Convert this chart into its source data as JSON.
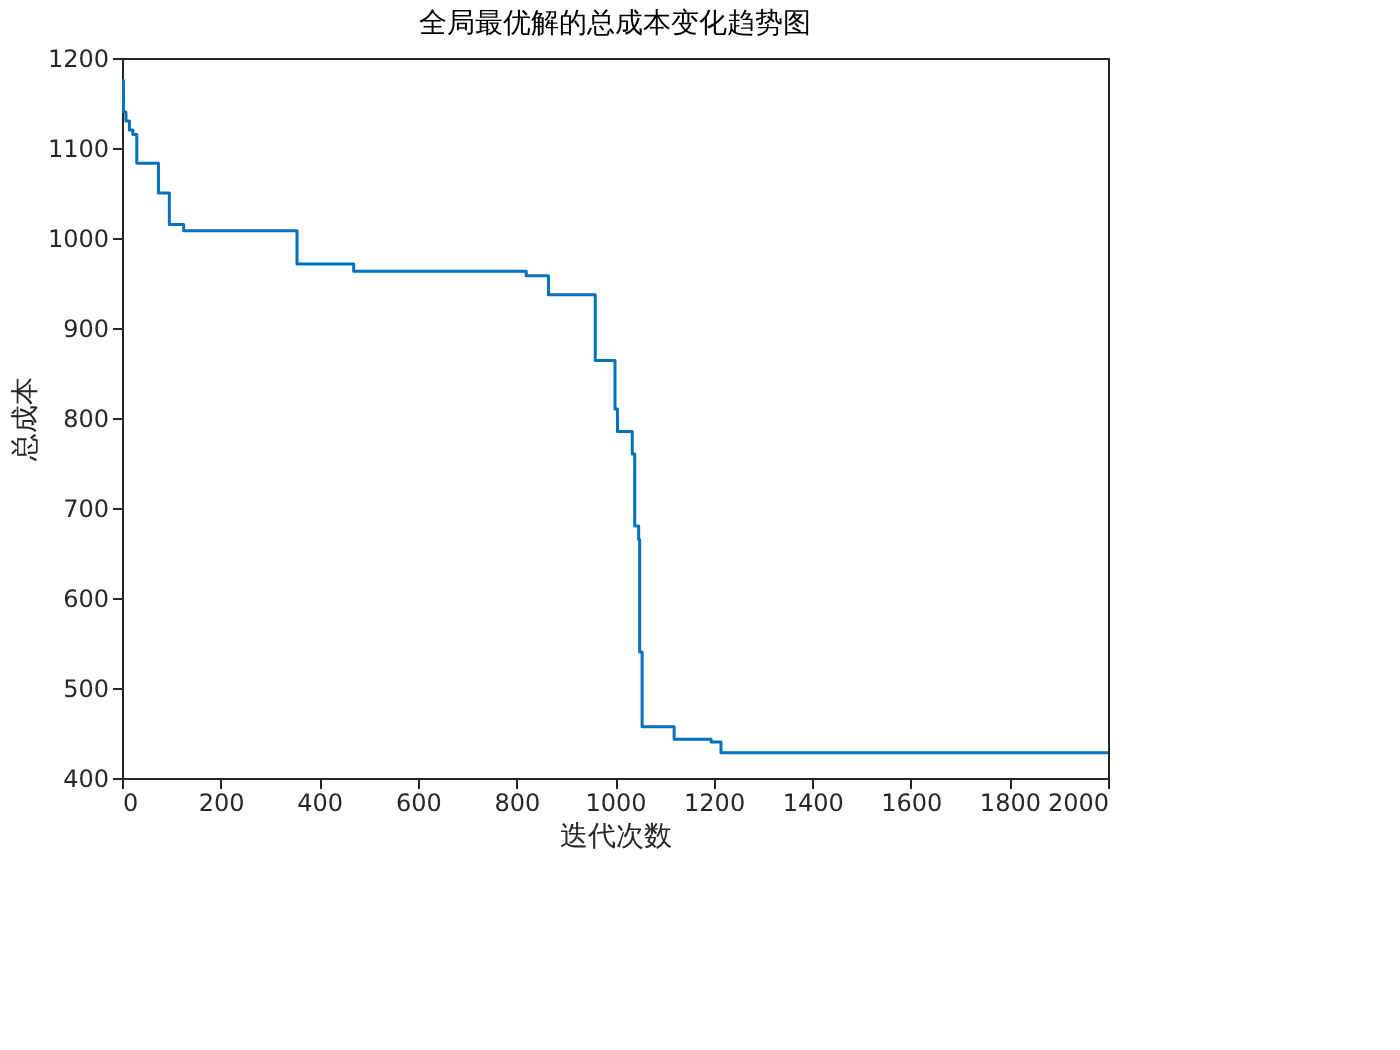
{
  "chart_data": {
    "type": "step",
    "title": "全局最优解的总成本变化趋势图",
    "xlabel": "迭代次数",
    "ylabel": "总成本",
    "series": [
      {
        "color": "#0072bd",
        "x": [
          0,
          3,
          8,
          15,
          22,
          30,
          74,
          96,
          125,
          355,
          470,
          820,
          865,
          960,
          1000,
          1005,
          1035,
          1040,
          1048,
          1050,
          1055,
          1085,
          1120,
          1195,
          1215,
          2000
        ],
        "values": [
          1175,
          1140,
          1130,
          1120,
          1115,
          1083,
          1050,
          1015,
          1008,
          971,
          963,
          958,
          937,
          864,
          810,
          785,
          760,
          680,
          665,
          540,
          457,
          457,
          443,
          440,
          428,
          428
        ]
      }
    ],
    "xlim": [
      0,
      2000
    ],
    "xticks": [
      0,
      200,
      400,
      600,
      800,
      1000,
      1200,
      1400,
      1600,
      1800,
      2000
    ],
    "ylim": [
      400,
      1200
    ],
    "yticks": [
      400,
      500,
      600,
      700,
      800,
      900,
      1000,
      1100,
      1200
    ],
    "grid": false
  }
}
